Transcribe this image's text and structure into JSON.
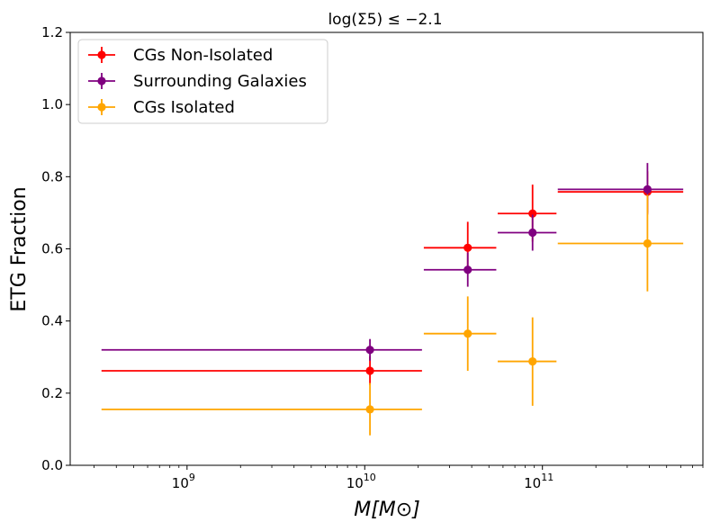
{
  "chart_data": {
    "type": "scatter",
    "title": "log(Σ5) ≤ −2.1",
    "xlabel": "M[M⊙]",
    "ylabel": "ETG Fraction",
    "xscale": "log",
    "xlim": [
      220000000.0,
      800000000000.0
    ],
    "ylim": [
      0,
      1.2
    ],
    "yticks": [
      "0.0",
      "0.2",
      "0.4",
      "0.6",
      "0.8",
      "1.0",
      "1.2"
    ],
    "xticks": [
      {
        "base": "10",
        "exp": "9",
        "value": 1000000000.0
      },
      {
        "base": "10",
        "exp": "10",
        "value": 10000000000.0
      },
      {
        "base": "10",
        "exp": "11",
        "value": 100000000000.0
      }
    ],
    "grid": false,
    "legend_position": "top-left",
    "series": [
      {
        "name": "CGs Non-Isolated",
        "color": "#ff0000",
        "points": [
          {
            "x": 10700000000.0,
            "xmin": 330000000.0,
            "xmax": 21000000000.0,
            "y": 0.262,
            "ylo": 0.222,
            "yhi": 0.302
          },
          {
            "x": 38000000000.0,
            "xmin": 21500000000.0,
            "xmax": 55000000000.0,
            "y": 0.603,
            "ylo": 0.53,
            "yhi": 0.675
          },
          {
            "x": 88000000000.0,
            "xmin": 56000000000.0,
            "xmax": 120000000000.0,
            "y": 0.698,
            "ylo": 0.62,
            "yhi": 0.778
          },
          {
            "x": 390000000000.0,
            "xmin": 122000000000.0,
            "xmax": 620000000000.0,
            "y": 0.758,
            "ylo": 0.7,
            "yhi": 0.815
          }
        ]
      },
      {
        "name": "Surrounding Galaxies",
        "color": "#800080",
        "points": [
          {
            "x": 10700000000.0,
            "xmin": 330000000.0,
            "xmax": 21000000000.0,
            "y": 0.32,
            "ylo": 0.29,
            "yhi": 0.35
          },
          {
            "x": 38000000000.0,
            "xmin": 21500000000.0,
            "xmax": 55000000000.0,
            "y": 0.542,
            "ylo": 0.495,
            "yhi": 0.59
          },
          {
            "x": 88000000000.0,
            "xmin": 56000000000.0,
            "xmax": 120000000000.0,
            "y": 0.645,
            "ylo": 0.595,
            "yhi": 0.695
          },
          {
            "x": 390000000000.0,
            "xmin": 122000000000.0,
            "xmax": 620000000000.0,
            "y": 0.765,
            "ylo": 0.695,
            "yhi": 0.838
          }
        ]
      },
      {
        "name": "CGs Isolated",
        "color": "#ffa500",
        "points": [
          {
            "x": 10700000000.0,
            "xmin": 330000000.0,
            "xmax": 21000000000.0,
            "y": 0.155,
            "ylo": 0.083,
            "yhi": 0.228
          },
          {
            "x": 38000000000.0,
            "xmin": 21500000000.0,
            "xmax": 55000000000.0,
            "y": 0.365,
            "ylo": 0.262,
            "yhi": 0.468
          },
          {
            "x": 88000000000.0,
            "xmin": 56000000000.0,
            "xmax": 120000000000.0,
            "y": 0.288,
            "ylo": 0.165,
            "yhi": 0.41
          },
          {
            "x": 390000000000.0,
            "xmin": 122000000000.0,
            "xmax": 620000000000.0,
            "y": 0.615,
            "ylo": 0.482,
            "yhi": 0.75
          }
        ]
      }
    ]
  }
}
